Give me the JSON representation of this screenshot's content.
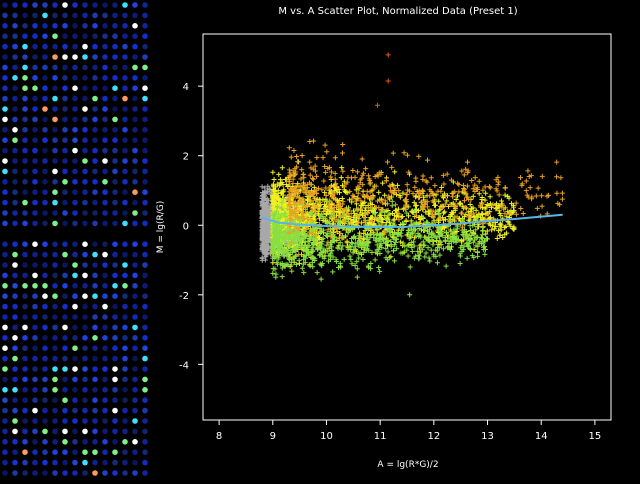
{
  "colors": {
    "background": "#000000",
    "axis": "#ffffff",
    "fit_line": "#5ab4e8",
    "outlier_high": "#e05a1a",
    "yellow_points": "#f0f020",
    "orange_points": "#e8a020",
    "green_points": "#88e040",
    "gray_points": "#a8a8a8"
  },
  "microarray": {
    "icon": "microarray-spot-grid",
    "spot_colors": [
      "#1a3aff",
      "#2a55ff",
      "#2040e0",
      "#3fe0ff",
      "#7ef08a",
      "#ffffff",
      "#ff9a60"
    ]
  },
  "chart_data": {
    "type": "scatter",
    "title": "M vs. A Scatter Plot, Normalized Data (Preset 1)",
    "xlabel": "A = lg(R*G)/2",
    "ylabel": "M = lg(R/G)",
    "xlim": [
      7.7,
      15.3
    ],
    "ylim": [
      -5.6,
      5.5
    ],
    "xticks": [
      8,
      9,
      10,
      11,
      12,
      13,
      14,
      15
    ],
    "yticks": [
      -4,
      -2,
      0,
      2,
      4
    ],
    "grid": false,
    "marker": "plus",
    "series": [
      {
        "color": "#a8a8a8",
        "density": {
          "x_range": [
            8.8,
            9.5
          ],
          "y_spread": 0.28,
          "count": 900
        }
      },
      {
        "color": "#f0f020",
        "density": {
          "x_range": [
            9.0,
            13.5
          ],
          "y_offset": 0.25,
          "y_spread": 0.35,
          "count": 1200
        }
      },
      {
        "color": "#88e040",
        "density": {
          "x_range": [
            9.0,
            13.0
          ],
          "y_offset": -0.4,
          "y_spread": 0.3,
          "count": 800
        }
      },
      {
        "color": "#e8a020",
        "density": {
          "x_range": [
            9.3,
            14.4
          ],
          "y_offset": 0.9,
          "y_spread": 0.4,
          "count": 450
        }
      },
      {
        "color": "#e05a1a",
        "points": [
          [
            11.15,
            4.9
          ],
          [
            11.15,
            4.15
          ],
          [
            10.95,
            3.45
          ]
        ]
      },
      {
        "color": "#88e040",
        "points": [
          [
            11.55,
            -2.0
          ],
          [
            9.9,
            -1.55
          ]
        ]
      }
    ],
    "fit_line": {
      "color": "#5ab4e8",
      "x": [
        8.8,
        9.1,
        9.5,
        10.0,
        10.5,
        11.0,
        11.5,
        12.0,
        12.5,
        13.0,
        13.5,
        14.0,
        14.4
      ],
      "y": [
        0.22,
        0.08,
        0.02,
        -0.02,
        -0.04,
        -0.05,
        -0.04,
        0.0,
        0.05,
        0.12,
        0.18,
        0.25,
        0.3
      ]
    }
  }
}
